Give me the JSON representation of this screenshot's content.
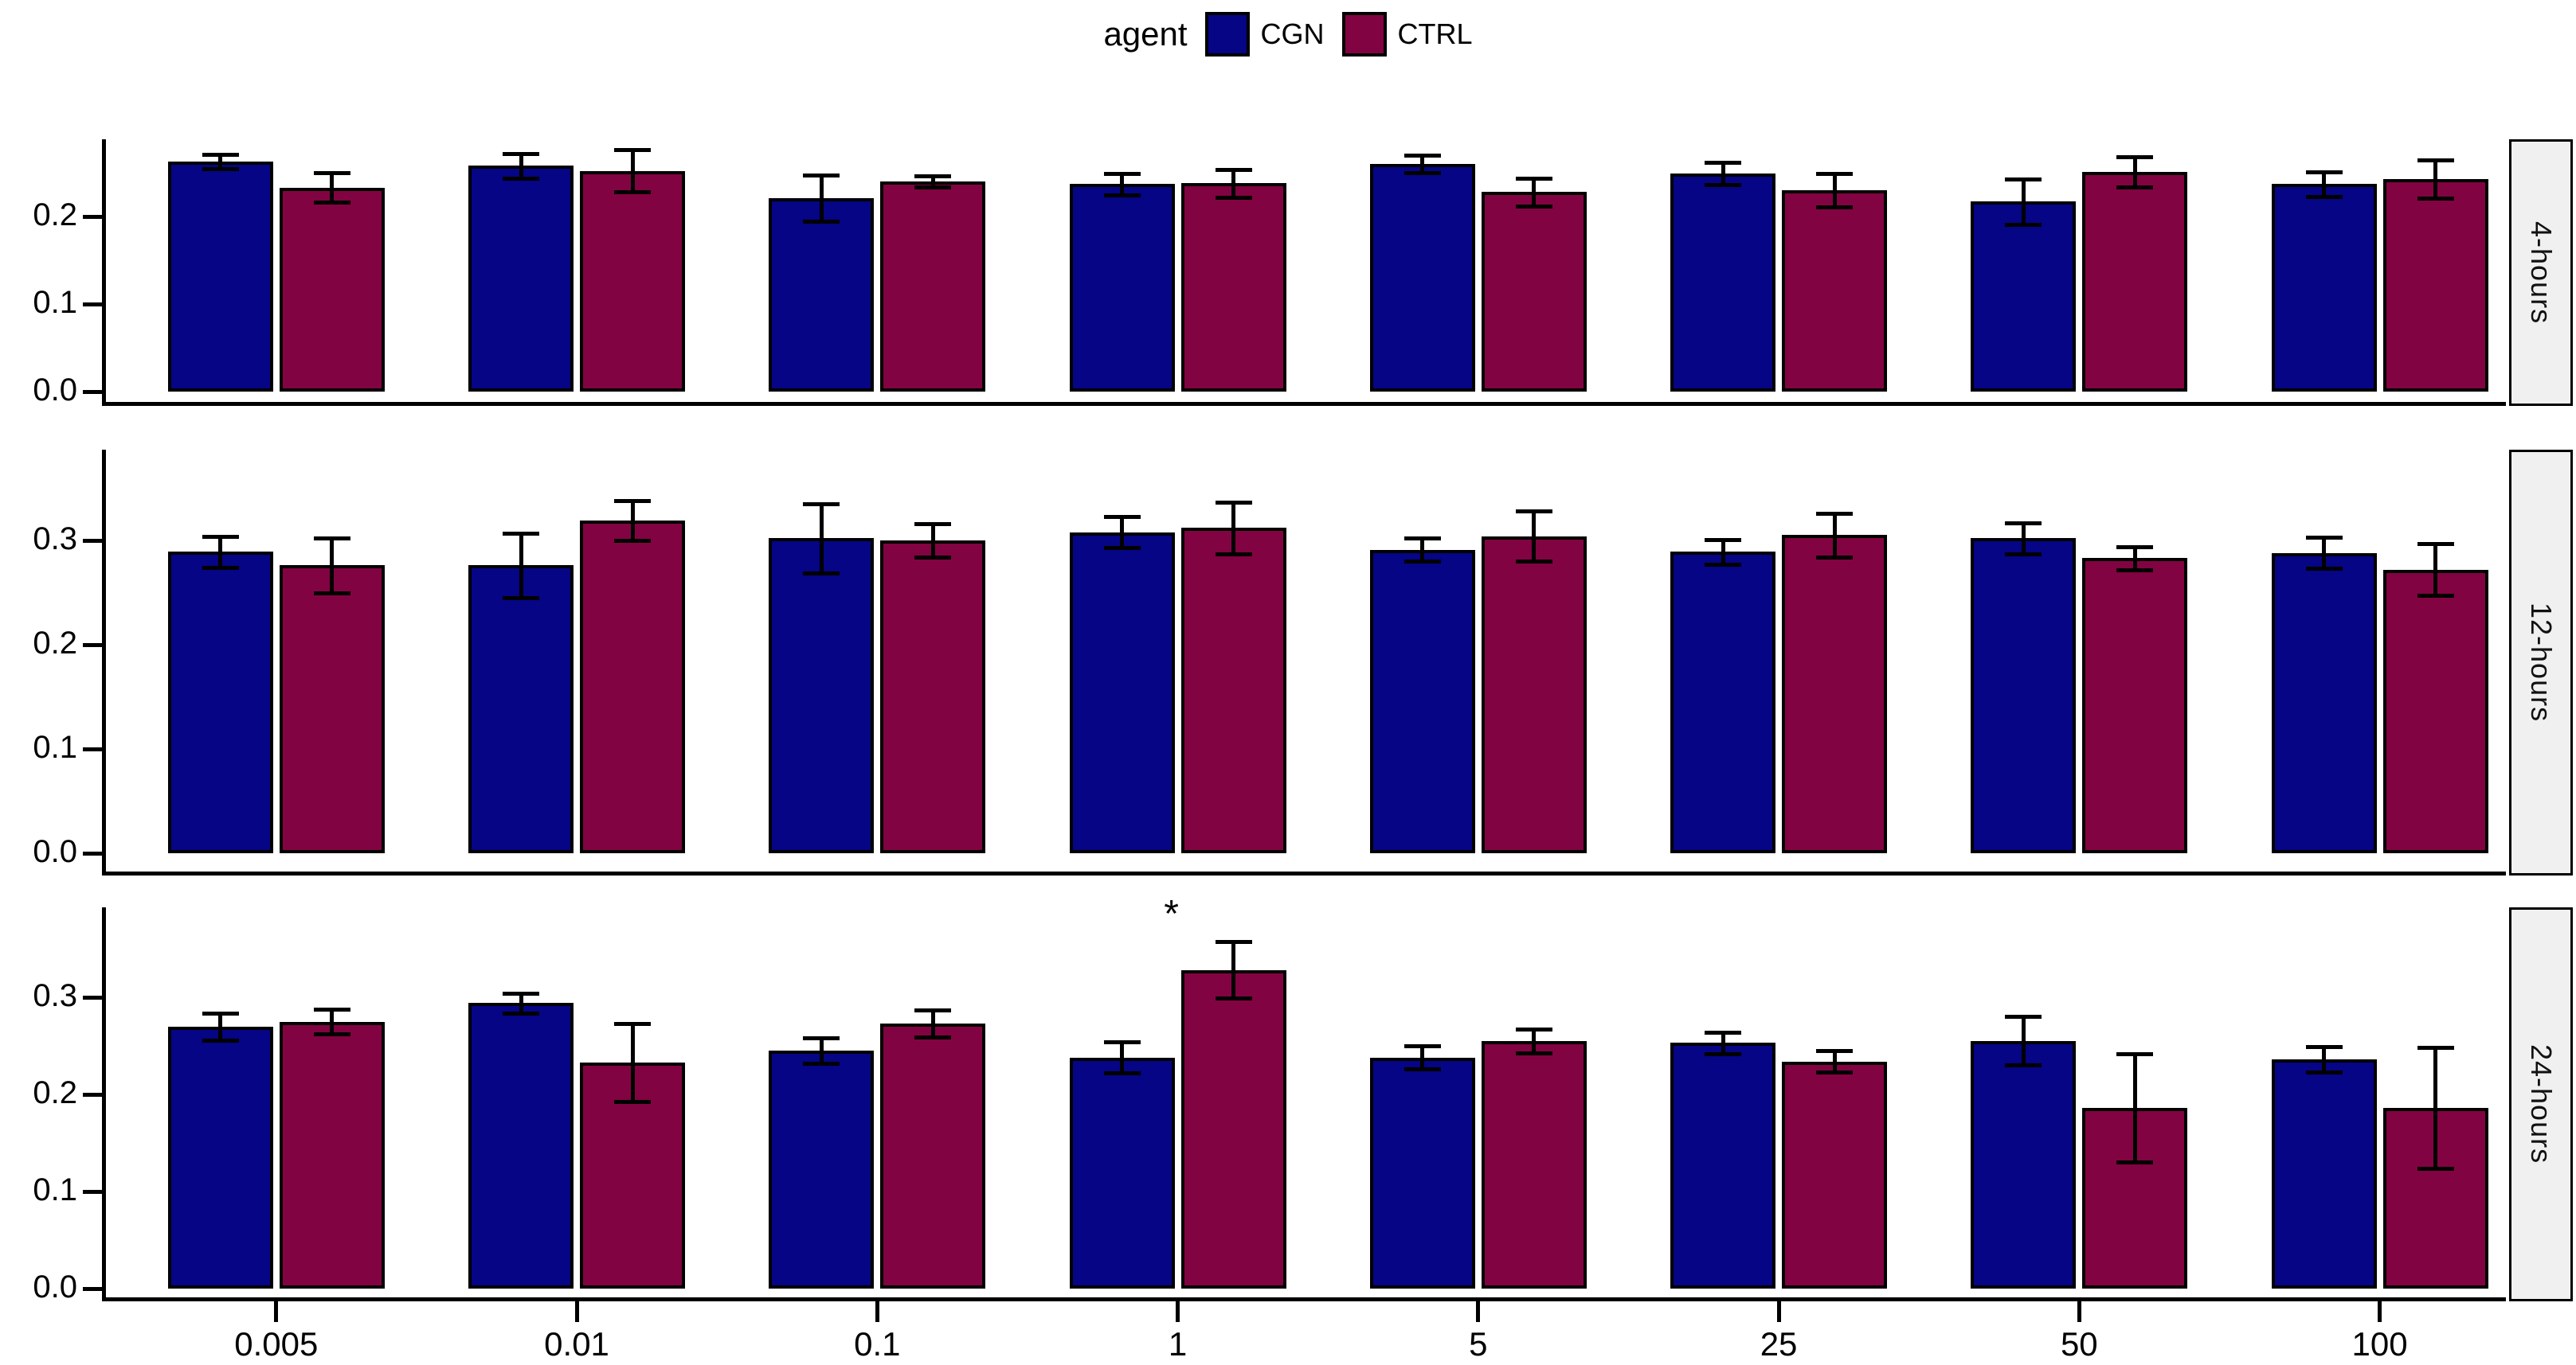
{
  "legend": {
    "title": "agent",
    "items": [
      {
        "label": "CGN",
        "color": "#050585"
      },
      {
        "label": "CTRL",
        "color": "#820341"
      }
    ]
  },
  "chart_data": {
    "type": "bar",
    "subtype": "grouped-faceted-with-error-bars",
    "title": "",
    "xlabel": "",
    "ylabel": "",
    "grid": false,
    "legend_position": "top",
    "categories": [
      "0.005",
      "0.01",
      "0.1",
      "1",
      "5",
      "25",
      "50",
      "100"
    ],
    "series_names": [
      "CGN",
      "CTRL"
    ],
    "colors": {
      "CGN": "#050585",
      "CTRL": "#820341",
      "outline": "#000000",
      "strip_bg": "#F0F0F0"
    },
    "facets": [
      {
        "label": "4-hours",
        "ylim": [
          0,
          0.29
        ],
        "yticks": [
          0.0,
          0.1,
          0.2
        ],
        "series": [
          {
            "name": "CGN",
            "values": [
              0.263,
              0.258,
              0.221,
              0.237,
              0.26,
              0.249,
              0.217,
              0.237
            ],
            "errors": [
              0.008,
              0.014,
              0.026,
              0.012,
              0.01,
              0.013,
              0.026,
              0.014
            ]
          },
          {
            "name": "CTRL",
            "values": [
              0.233,
              0.252,
              0.24,
              0.238,
              0.228,
              0.23,
              0.251,
              0.243
            ],
            "errors": [
              0.017,
              0.024,
              0.006,
              0.016,
              0.016,
              0.019,
              0.017,
              0.022
            ]
          }
        ],
        "annotations": []
      },
      {
        "label": "12-hours",
        "ylim": [
          0,
          0.38
        ],
        "yticks": [
          0.0,
          0.1,
          0.2,
          0.3
        ],
        "series": [
          {
            "name": "CGN",
            "values": [
              0.289,
              0.276,
              0.302,
              0.308,
              0.291,
              0.289,
              0.302,
              0.288
            ],
            "errors": [
              0.015,
              0.031,
              0.033,
              0.015,
              0.011,
              0.012,
              0.015,
              0.015
            ]
          },
          {
            "name": "CTRL",
            "values": [
              0.276,
              0.319,
              0.3,
              0.312,
              0.304,
              0.305,
              0.283,
              0.272
            ],
            "errors": [
              0.026,
              0.019,
              0.016,
              0.025,
              0.024,
              0.021,
              0.011,
              0.025
            ]
          }
        ],
        "annotations": []
      },
      {
        "label": "24-hours",
        "ylim": [
          0,
          0.4
        ],
        "yticks": [
          0.0,
          0.1,
          0.2,
          0.3
        ],
        "series": [
          {
            "name": "CGN",
            "values": [
              0.27,
              0.294,
              0.245,
              0.238,
              0.238,
              0.253,
              0.255,
              0.236
            ],
            "errors": [
              0.014,
              0.01,
              0.013,
              0.016,
              0.012,
              0.011,
              0.025,
              0.013
            ]
          },
          {
            "name": "CTRL",
            "values": [
              0.275,
              0.233,
              0.273,
              0.328,
              0.255,
              0.234,
              0.186,
              0.186
            ],
            "errors": [
              0.013,
              0.04,
              0.014,
              0.029,
              0.012,
              0.011,
              0.056,
              0.062
            ]
          }
        ],
        "annotations": [
          {
            "category": "1",
            "series": "CTRL",
            "text": "*"
          }
        ]
      }
    ]
  }
}
